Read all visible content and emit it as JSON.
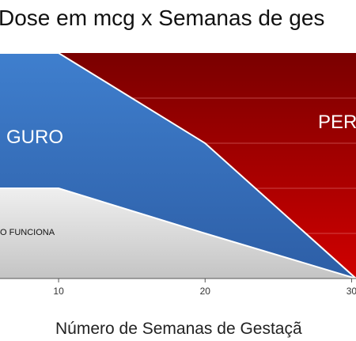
{
  "chart_data": {
    "type": "area",
    "title": "Dose em mcg x Semanas de ges",
    "xlabel": "Número de Semanas de Gestaçã",
    "ylabel": "",
    "xlim": [
      6,
      30.3
    ],
    "x_ticks": [
      10,
      20,
      30
    ],
    "x_tick_labels": [
      "10",
      "20",
      "30"
    ],
    "grid": true,
    "region_labels": {
      "gray": "O FUNCIONA",
      "blue": "GURO",
      "red": "PER"
    },
    "colors": {
      "red_top": "#7a0000",
      "red_bottom": "#d00000",
      "blue_top": "#3f7fce",
      "blue_bottom": "#2d5ea6",
      "gray_top": "#efefef",
      "gray_bottom": "#c4c4c4",
      "grid": "#e67a7a"
    },
    "boundaries": {
      "upper": {
        "x": [
          6,
          10,
          20,
          30.3
        ],
        "y": [
          1.0,
          1.0,
          0.6,
          0.0
        ]
      },
      "lower": {
        "x": [
          6,
          10,
          20,
          30.3
        ],
        "y": [
          0.4,
          0.4,
          0.2,
          0.0
        ]
      }
    }
  }
}
